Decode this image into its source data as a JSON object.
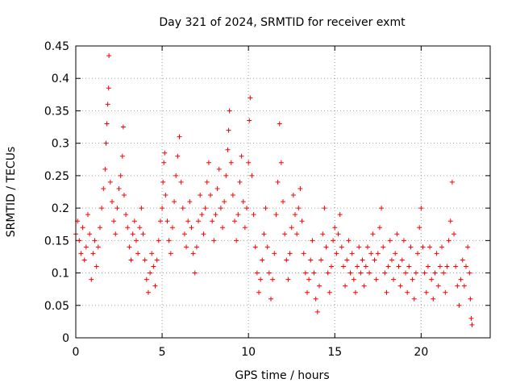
{
  "chart_data": {
    "type": "scatter",
    "title": "Day 321 of 2024, SRMTID for receiver exmt",
    "xlabel": "GPS time / hours",
    "ylabel": "SRMTID / TECUs",
    "xlim": [
      0,
      24
    ],
    "ylim": [
      0,
      0.45
    ],
    "x_ticks": [
      0,
      5,
      10,
      15,
      20
    ],
    "x_tick_labels": [
      "0",
      "5",
      "10",
      "15",
      "20"
    ],
    "y_ticks": [
      0,
      0.05,
      0.1,
      0.15,
      0.2,
      0.25,
      0.3,
      0.35,
      0.4,
      0.45
    ],
    "y_tick_labels": [
      "0",
      "0.05",
      "0.1",
      "0.15",
      "0.2",
      "0.25",
      "0.3",
      "0.35",
      "0.4",
      "0.45"
    ],
    "grid": true,
    "marker": "+",
    "color": "#ff0000",
    "series": [
      {
        "name": "SRMTID",
        "points": [
          [
            0.0,
            0.16
          ],
          [
            0.1,
            0.18
          ],
          [
            0.2,
            0.15
          ],
          [
            0.3,
            0.13
          ],
          [
            0.4,
            0.17
          ],
          [
            0.5,
            0.12
          ],
          [
            0.6,
            0.14
          ],
          [
            0.7,
            0.19
          ],
          [
            0.8,
            0.16
          ],
          [
            0.9,
            0.09
          ],
          [
            1.0,
            0.13
          ],
          [
            1.1,
            0.15
          ],
          [
            1.2,
            0.11
          ],
          [
            1.3,
            0.14
          ],
          [
            1.4,
            0.17
          ],
          [
            1.5,
            0.2
          ],
          [
            1.6,
            0.23
          ],
          [
            1.7,
            0.26
          ],
          [
            1.75,
            0.3
          ],
          [
            1.8,
            0.33
          ],
          [
            1.85,
            0.36
          ],
          [
            1.9,
            0.385
          ],
          [
            1.92,
            0.435
          ],
          [
            2.0,
            0.24
          ],
          [
            2.1,
            0.21
          ],
          [
            2.2,
            0.18
          ],
          [
            2.3,
            0.16
          ],
          [
            2.4,
            0.2
          ],
          [
            2.5,
            0.23
          ],
          [
            2.6,
            0.25
          ],
          [
            2.7,
            0.28
          ],
          [
            2.75,
            0.325
          ],
          [
            2.8,
            0.22
          ],
          [
            2.9,
            0.19
          ],
          [
            3.0,
            0.17
          ],
          [
            3.1,
            0.14
          ],
          [
            3.2,
            0.12
          ],
          [
            3.3,
            0.16
          ],
          [
            3.4,
            0.18
          ],
          [
            3.5,
            0.15
          ],
          [
            3.6,
            0.13
          ],
          [
            3.7,
            0.17
          ],
          [
            3.8,
            0.2
          ],
          [
            3.9,
            0.16
          ],
          [
            4.0,
            0.12
          ],
          [
            4.1,
            0.09
          ],
          [
            4.2,
            0.07
          ],
          [
            4.3,
            0.1
          ],
          [
            4.4,
            0.13
          ],
          [
            4.5,
            0.11
          ],
          [
            4.6,
            0.08
          ],
          [
            4.7,
            0.12
          ],
          [
            4.8,
            0.15
          ],
          [
            4.9,
            0.18
          ],
          [
            5.0,
            0.2
          ],
          [
            5.05,
            0.24
          ],
          [
            5.1,
            0.27
          ],
          [
            5.15,
            0.285
          ],
          [
            5.2,
            0.22
          ],
          [
            5.3,
            0.18
          ],
          [
            5.4,
            0.15
          ],
          [
            5.5,
            0.13
          ],
          [
            5.6,
            0.17
          ],
          [
            5.7,
            0.21
          ],
          [
            5.8,
            0.25
          ],
          [
            5.9,
            0.28
          ],
          [
            6.0,
            0.31
          ],
          [
            6.1,
            0.24
          ],
          [
            6.2,
            0.2
          ],
          [
            6.3,
            0.16
          ],
          [
            6.4,
            0.14
          ],
          [
            6.5,
            0.18
          ],
          [
            6.6,
            0.21
          ],
          [
            6.7,
            0.17
          ],
          [
            6.8,
            0.13
          ],
          [
            6.9,
            0.1
          ],
          [
            7.0,
            0.14
          ],
          [
            7.1,
            0.18
          ],
          [
            7.2,
            0.22
          ],
          [
            7.3,
            0.19
          ],
          [
            7.4,
            0.16
          ],
          [
            7.5,
            0.2
          ],
          [
            7.6,
            0.24
          ],
          [
            7.7,
            0.27
          ],
          [
            7.8,
            0.22
          ],
          [
            7.9,
            0.18
          ],
          [
            8.0,
            0.15
          ],
          [
            8.1,
            0.19
          ],
          [
            8.2,
            0.23
          ],
          [
            8.3,
            0.26
          ],
          [
            8.4,
            0.2
          ],
          [
            8.5,
            0.17
          ],
          [
            8.6,
            0.21
          ],
          [
            8.7,
            0.25
          ],
          [
            8.8,
            0.29
          ],
          [
            8.85,
            0.32
          ],
          [
            8.9,
            0.35
          ],
          [
            9.0,
            0.27
          ],
          [
            9.1,
            0.22
          ],
          [
            9.2,
            0.18
          ],
          [
            9.3,
            0.15
          ],
          [
            9.4,
            0.19
          ],
          [
            9.5,
            0.24
          ],
          [
            9.6,
            0.28
          ],
          [
            9.7,
            0.21
          ],
          [
            9.8,
            0.17
          ],
          [
            9.9,
            0.2
          ],
          [
            10.0,
            0.27
          ],
          [
            10.05,
            0.335
          ],
          [
            10.1,
            0.37
          ],
          [
            10.2,
            0.25
          ],
          [
            10.3,
            0.19
          ],
          [
            10.4,
            0.14
          ],
          [
            10.5,
            0.1
          ],
          [
            10.6,
            0.07
          ],
          [
            10.7,
            0.09
          ],
          [
            10.8,
            0.12
          ],
          [
            10.9,
            0.16
          ],
          [
            11.0,
            0.2
          ],
          [
            11.1,
            0.14
          ],
          [
            11.2,
            0.1
          ],
          [
            11.3,
            0.06
          ],
          [
            11.4,
            0.09
          ],
          [
            11.5,
            0.13
          ],
          [
            11.6,
            0.19
          ],
          [
            11.7,
            0.24
          ],
          [
            11.8,
            0.33
          ],
          [
            11.9,
            0.27
          ],
          [
            12.0,
            0.21
          ],
          [
            12.1,
            0.16
          ],
          [
            12.2,
            0.12
          ],
          [
            12.3,
            0.09
          ],
          [
            12.4,
            0.13
          ],
          [
            12.5,
            0.17
          ],
          [
            12.6,
            0.22
          ],
          [
            12.7,
            0.19
          ],
          [
            12.8,
            0.16
          ],
          [
            12.9,
            0.2
          ],
          [
            13.0,
            0.23
          ],
          [
            13.1,
            0.18
          ],
          [
            13.2,
            0.13
          ],
          [
            13.3,
            0.1
          ],
          [
            13.4,
            0.07
          ],
          [
            13.5,
            0.09
          ],
          [
            13.6,
            0.12
          ],
          [
            13.7,
            0.15
          ],
          [
            13.8,
            0.1
          ],
          [
            13.9,
            0.06
          ],
          [
            14.0,
            0.04
          ],
          [
            14.1,
            0.08
          ],
          [
            14.2,
            0.12
          ],
          [
            14.3,
            0.16
          ],
          [
            14.4,
            0.2
          ],
          [
            14.5,
            0.14
          ],
          [
            14.6,
            0.1
          ],
          [
            14.7,
            0.07
          ],
          [
            14.8,
            0.11
          ],
          [
            14.9,
            0.15
          ],
          [
            15.0,
            0.17
          ],
          [
            15.1,
            0.13
          ],
          [
            15.2,
            0.16
          ],
          [
            15.3,
            0.19
          ],
          [
            15.4,
            0.14
          ],
          [
            15.5,
            0.11
          ],
          [
            15.6,
            0.08
          ],
          [
            15.7,
            0.12
          ],
          [
            15.8,
            0.15
          ],
          [
            15.9,
            0.1
          ],
          [
            16.0,
            0.13
          ],
          [
            16.1,
            0.09
          ],
          [
            16.2,
            0.07
          ],
          [
            16.3,
            0.11
          ],
          [
            16.4,
            0.14
          ],
          [
            16.5,
            0.1
          ],
          [
            16.6,
            0.12
          ],
          [
            16.7,
            0.08
          ],
          [
            16.8,
            0.11
          ],
          [
            16.9,
            0.14
          ],
          [
            17.0,
            0.1
          ],
          [
            17.1,
            0.13
          ],
          [
            17.2,
            0.16
          ],
          [
            17.3,
            0.12
          ],
          [
            17.4,
            0.09
          ],
          [
            17.5,
            0.13
          ],
          [
            17.6,
            0.17
          ],
          [
            17.7,
            0.2
          ],
          [
            17.8,
            0.14
          ],
          [
            17.9,
            0.1
          ],
          [
            18.0,
            0.07
          ],
          [
            18.1,
            0.11
          ],
          [
            18.2,
            0.15
          ],
          [
            18.3,
            0.12
          ],
          [
            18.4,
            0.09
          ],
          [
            18.5,
            0.13
          ],
          [
            18.6,
            0.16
          ],
          [
            18.7,
            0.11
          ],
          [
            18.8,
            0.08
          ],
          [
            18.9,
            0.12
          ],
          [
            19.0,
            0.15
          ],
          [
            19.1,
            0.1
          ],
          [
            19.2,
            0.07
          ],
          [
            19.3,
            0.11
          ],
          [
            19.4,
            0.14
          ],
          [
            19.5,
            0.09
          ],
          [
            19.6,
            0.06
          ],
          [
            19.7,
            0.1
          ],
          [
            19.8,
            0.13
          ],
          [
            19.9,
            0.17
          ],
          [
            20.0,
            0.2
          ],
          [
            20.1,
            0.14
          ],
          [
            20.2,
            0.1
          ],
          [
            20.3,
            0.07
          ],
          [
            20.4,
            0.11
          ],
          [
            20.5,
            0.14
          ],
          [
            20.6,
            0.09
          ],
          [
            20.7,
            0.06
          ],
          [
            20.8,
            0.1
          ],
          [
            20.9,
            0.13
          ],
          [
            21.0,
            0.08
          ],
          [
            21.1,
            0.11
          ],
          [
            21.2,
            0.14
          ],
          [
            21.3,
            0.1
          ],
          [
            21.4,
            0.07
          ],
          [
            21.5,
            0.11
          ],
          [
            21.6,
            0.15
          ],
          [
            21.7,
            0.18
          ],
          [
            21.8,
            0.24
          ],
          [
            21.9,
            0.16
          ],
          [
            22.0,
            0.11
          ],
          [
            22.1,
            0.08
          ],
          [
            22.2,
            0.05
          ],
          [
            22.3,
            0.09
          ],
          [
            22.4,
            0.12
          ],
          [
            22.5,
            0.08
          ],
          [
            22.6,
            0.11
          ],
          [
            22.7,
            0.14
          ],
          [
            22.8,
            0.1
          ],
          [
            22.85,
            0.06
          ],
          [
            22.9,
            0.03
          ],
          [
            22.95,
            0.02
          ]
        ]
      }
    ]
  }
}
